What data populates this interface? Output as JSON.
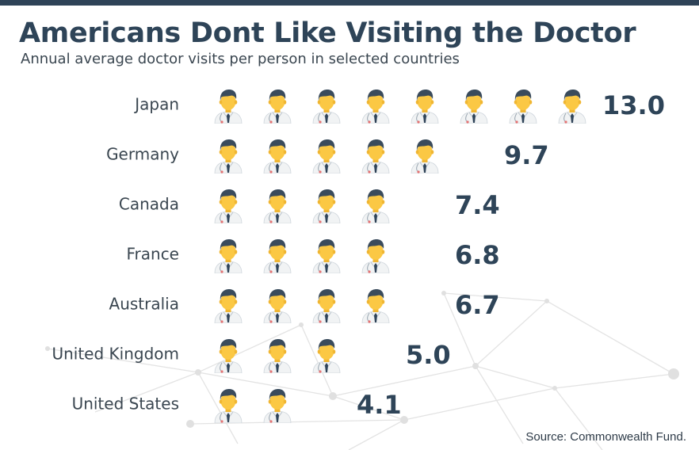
{
  "title": "Americans Dont Like Visiting the Doctor",
  "subtitle": "Annual average doctor visits per person in selected countries",
  "source": "Source: Commonwealth Fund.",
  "colors": {
    "bar": "#2f4358",
    "title": "#2e4458",
    "value": "#2e4458",
    "label": "#3a4650",
    "skin": "#fbc844",
    "hair": "#3a4b5c",
    "coat": "#f1f3f4",
    "tie": "#2f4358",
    "stethoscope": "#e57373",
    "network": "#d9d9d9"
  },
  "icon": "doctor-icon",
  "chart_data": {
    "type": "pictogram",
    "unit_per_icon": 1.625,
    "categories": [
      "Japan",
      "Germany",
      "Canada",
      "France",
      "Australia",
      "United Kingdom",
      "United States"
    ],
    "values": [
      13.0,
      9.7,
      7.4,
      6.8,
      6.7,
      5.0,
      4.1
    ],
    "value_labels": [
      "13.0",
      "9.7",
      "7.4",
      "6.8",
      "6.7",
      "5.0",
      "4.1"
    ]
  }
}
